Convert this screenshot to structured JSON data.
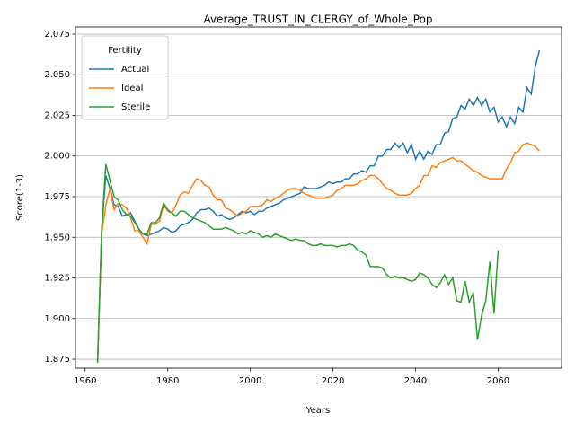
{
  "chart_data": {
    "type": "line",
    "title": "Average_TRUST_IN_CLERGY_of_Whole_Pop",
    "x_label": "Years",
    "y_label": "Score(1-3)",
    "x": [
      1963,
      1964,
      1965,
      1966,
      1967,
      1968,
      1969,
      1970,
      1971,
      1972,
      1973,
      1974,
      1975,
      1976,
      1977,
      1978,
      1979,
      1980,
      1981,
      1982,
      1983,
      1984,
      1985,
      1986,
      1987,
      1988,
      1989,
      1990,
      1991,
      1992,
      1993,
      1994,
      1995,
      1996,
      1997,
      1998,
      1999,
      2000,
      2001,
      2002,
      2003,
      2004,
      2005,
      2006,
      2007,
      2008,
      2009,
      2010,
      2011,
      2012,
      2013,
      2014,
      2015,
      2016,
      2017,
      2018,
      2019,
      2020,
      2021,
      2022,
      2023,
      2024,
      2025,
      2026,
      2027,
      2028,
      2029,
      2030,
      2031,
      2032,
      2033,
      2034,
      2035,
      2036,
      2037,
      2038,
      2039,
      2040,
      2041,
      2042,
      2043,
      2044,
      2045,
      2046,
      2047,
      2048,
      2049,
      2050,
      2051,
      2052,
      2053,
      2054,
      2055,
      2056,
      2057,
      2058,
      2059,
      2060,
      2061,
      2062,
      2063,
      2064,
      2065,
      2066,
      2067,
      2068,
      2069,
      2070
    ],
    "series": [
      {
        "name": "Actual",
        "color": "#1f77b4",
        "values": [
          1.873,
          1.955,
          1.988,
          1.98,
          1.97,
          1.969,
          1.963,
          1.964,
          1.965,
          1.96,
          1.955,
          1.952,
          1.951,
          1.952,
          1.953,
          1.954,
          1.956,
          1.955,
          1.953,
          1.954,
          1.957,
          1.958,
          1.959,
          1.961,
          1.965,
          1.967,
          1.967,
          1.968,
          1.966,
          1.963,
          1.964,
          1.962,
          1.961,
          1.962,
          1.964,
          1.966,
          1.965,
          1.966,
          1.964,
          1.966,
          1.966,
          1.968,
          1.969,
          1.97,
          1.971,
          1.973,
          1.974,
          1.975,
          1.976,
          1.977,
          1.981,
          1.98,
          1.98,
          1.98,
          1.981,
          1.982,
          1.984,
          1.983,
          1.984,
          1.984,
          1.986,
          1.986,
          1.989,
          1.989,
          1.991,
          1.99,
          1.994,
          1.994,
          2.0,
          2.0,
          2.004,
          2.004,
          2.008,
          2.005,
          2.008,
          2.002,
          2.007,
          1.998,
          2.003,
          1.998,
          2.003,
          2.001,
          2.007,
          2.007,
          2.014,
          2.015,
          2.023,
          2.024,
          2.031,
          2.029,
          2.035,
          2.031,
          2.036,
          2.031,
          2.035,
          2.027,
          2.03,
          2.021,
          2.024,
          2.018,
          2.024,
          2.02,
          2.03,
          2.027,
          2.042,
          2.038,
          2.055,
          2.065
        ]
      },
      {
        "name": "Ideal",
        "color": "#ff7f0e",
        "values": [
          1.873,
          1.952,
          1.97,
          1.98,
          1.967,
          1.971,
          1.97,
          1.968,
          1.962,
          1.954,
          1.954,
          1.95,
          1.946,
          1.958,
          1.958,
          1.96,
          1.97,
          1.966,
          1.965,
          1.97,
          1.976,
          1.978,
          1.977,
          1.982,
          1.986,
          1.985,
          1.982,
          1.981,
          1.976,
          1.973,
          1.973,
          1.968,
          1.967,
          1.965,
          1.963,
          1.965,
          1.966,
          1.969,
          1.969,
          1.969,
          1.97,
          1.973,
          1.972,
          1.974,
          1.975,
          1.977,
          1.979,
          1.98,
          1.98,
          1.979,
          1.977,
          1.976,
          1.975,
          1.974,
          1.974,
          1.974,
          1.975,
          1.976,
          1.979,
          1.98,
          1.982,
          1.982,
          1.982,
          1.983,
          1.985,
          1.986,
          1.988,
          1.988,
          1.986,
          1.983,
          1.98,
          1.979,
          1.977,
          1.976,
          1.976,
          1.976,
          1.977,
          1.98,
          1.982,
          1.988,
          1.988,
          1.994,
          1.993,
          1.996,
          1.997,
          1.998,
          1.999,
          1.997,
          1.997,
          1.995,
          1.993,
          1.991,
          1.99,
          1.988,
          1.987,
          1.986,
          1.986,
          1.986,
          1.986,
          1.992,
          1.996,
          2.002,
          2.003,
          2.007,
          2.008,
          2.007,
          2.006,
          2.003
        ]
      },
      {
        "name": "Sterile",
        "color": "#2ca02c",
        "values": [
          1.873,
          1.955,
          1.995,
          1.985,
          1.975,
          1.973,
          1.967,
          1.964,
          1.963,
          1.959,
          1.955,
          1.952,
          1.952,
          1.959,
          1.959,
          1.962,
          1.971,
          1.967,
          1.965,
          1.963,
          1.966,
          1.966,
          1.964,
          1.962,
          1.961,
          1.96,
          1.959,
          1.957,
          1.955,
          1.955,
          1.955,
          1.956,
          1.955,
          1.954,
          1.952,
          1.953,
          1.952,
          1.954,
          1.953,
          1.952,
          1.95,
          1.951,
          1.95,
          1.952,
          1.951,
          1.95,
          1.949,
          1.948,
          1.949,
          1.948,
          1.948,
          1.946,
          1.945,
          1.945,
          1.946,
          1.945,
          1.945,
          1.945,
          1.944,
          1.945,
          1.945,
          1.946,
          1.945,
          1.942,
          1.941,
          1.939,
          1.932,
          1.932,
          1.932,
          1.931,
          1.927,
          1.925,
          1.926,
          1.925,
          1.925,
          1.924,
          1.923,
          1.924,
          1.928,
          1.927,
          1.925,
          1.921,
          1.919,
          1.922,
          1.927,
          1.921,
          1.925,
          1.911,
          1.91,
          1.923,
          1.91,
          1.916,
          1.887,
          1.902,
          1.911,
          1.935,
          1.903,
          1.942,
          null,
          null,
          null,
          null,
          null,
          null,
          null,
          null,
          null,
          null
        ]
      }
    ],
    "xlim": [
      1957.65,
      2075.35
    ],
    "xticks": [
      1960,
      1980,
      2000,
      2020,
      2040,
      2060
    ],
    "ylim": [
      1.8695,
      2.0794
    ],
    "yticks": [
      1.875,
      {
        "value": 1.9,
        "label": "1.900"
      },
      1.925,
      {
        "value": 1.95,
        "label": "1.950"
      },
      1.975,
      {
        "value": 2.0,
        "label": "2.000"
      },
      2.025,
      {
        "value": 2.05,
        "label": "2.050"
      },
      2.075
    ],
    "grid": "y",
    "legend_title": "Fertility",
    "legend_position": "upper left"
  }
}
